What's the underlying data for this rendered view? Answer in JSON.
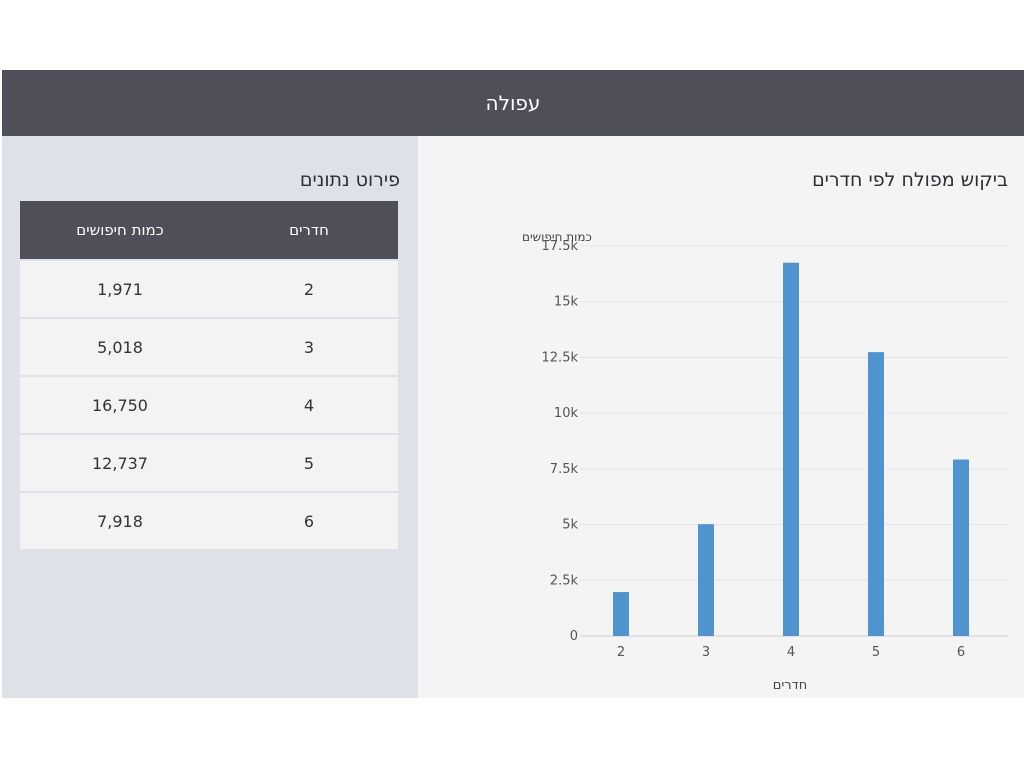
{
  "header": {
    "title": "עפולה"
  },
  "table": {
    "title": "פירוט נתונים",
    "col_rooms": "חדרים",
    "col_searches": "כמות חיפושים",
    "rows": [
      {
        "rooms": "2",
        "searches": "1,971"
      },
      {
        "rooms": "3",
        "searches": "5,018"
      },
      {
        "rooms": "4",
        "searches": "16,750"
      },
      {
        "rooms": "5",
        "searches": "12,737"
      },
      {
        "rooms": "6",
        "searches": "7,918"
      }
    ]
  },
  "chart": {
    "title": "ביקוש מפולח לפי חדרים"
  },
  "chart_data": {
    "type": "bar",
    "title": "ביקוש מפולח לפי חדרים",
    "xlabel": "חדרים",
    "ylabel": "כמות חיפושים",
    "categories": [
      "2",
      "3",
      "4",
      "5",
      "6"
    ],
    "values": [
      1971,
      5018,
      16750,
      12737,
      7918
    ],
    "ylim": [
      0,
      17500
    ],
    "yticks": [
      0,
      2500,
      5000,
      7500,
      10000,
      12500,
      15000,
      17500
    ],
    "ytick_labels": [
      "0",
      "2.5k",
      "5k",
      "7.5k",
      "10k",
      "12.5k",
      "15k",
      "17.5k"
    ],
    "grid": true,
    "bar_color": "#4f93cf"
  },
  "colors": {
    "header_bg": "#4e4f59",
    "left_panel_bg": "#dee2e8",
    "right_panel_bg": "#f4f4f4",
    "bar": "#4f93cf"
  }
}
